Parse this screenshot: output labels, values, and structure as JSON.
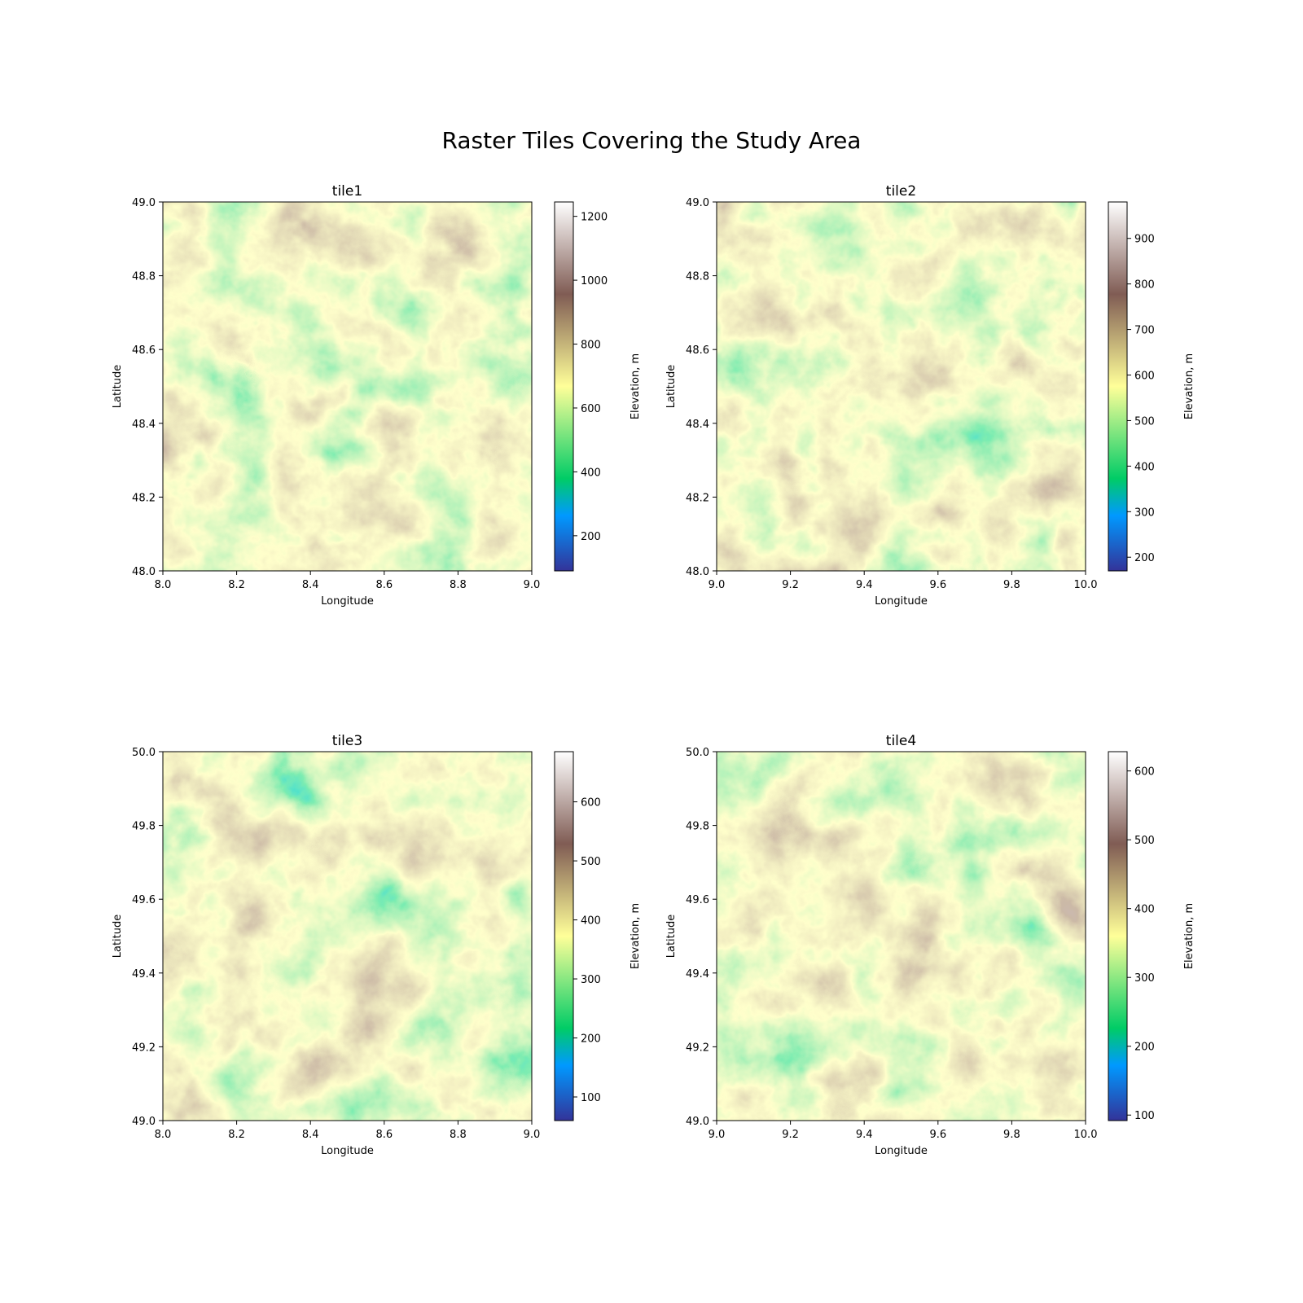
{
  "figure": {
    "title": "Raster Tiles Covering the Study Area"
  },
  "chart_data": [
    {
      "type": "heatmap",
      "title": "tile1",
      "xlabel": "Longitude",
      "ylabel": "Latitude",
      "xlim": [
        8.0,
        9.0
      ],
      "ylim": [
        48.0,
        49.0
      ],
      "xticks": [
        8.0,
        8.2,
        8.4,
        8.6,
        8.8,
        9.0
      ],
      "xtick_labels": [
        "8.0",
        "8.2",
        "8.4",
        "8.6",
        "8.8",
        "9.0"
      ],
      "yticks": [
        48.0,
        48.2,
        48.4,
        48.6,
        48.8,
        49.0
      ],
      "ytick_labels": [
        "48.0",
        "48.2",
        "48.4",
        "48.6",
        "48.8",
        "49.0"
      ],
      "colorbar": {
        "label": "Elevation, m",
        "range": [
          90,
          1245
        ],
        "ticks": [
          200,
          400,
          600,
          800,
          1000,
          1200
        ],
        "tick_labels": [
          "200",
          "400",
          "600",
          "800",
          "1000",
          "1200"
        ]
      },
      "colormap": "terrain",
      "grid": false
    },
    {
      "type": "heatmap",
      "title": "tile2",
      "xlabel": "Longitude",
      "ylabel": "Latitude",
      "xlim": [
        9.0,
        10.0
      ],
      "ylim": [
        48.0,
        49.0
      ],
      "xticks": [
        9.0,
        9.2,
        9.4,
        9.6,
        9.8,
        10.0
      ],
      "xtick_labels": [
        "9.0",
        "9.2",
        "9.4",
        "9.6",
        "9.8",
        "10.0"
      ],
      "yticks": [
        48.0,
        48.2,
        48.4,
        48.6,
        48.8,
        49.0
      ],
      "ytick_labels": [
        "48.0",
        "48.2",
        "48.4",
        "48.6",
        "48.8",
        "49.0"
      ],
      "colorbar": {
        "label": "Elevation, m",
        "range": [
          170,
          980
        ],
        "ticks": [
          200,
          300,
          400,
          500,
          600,
          700,
          800,
          900
        ],
        "tick_labels": [
          "200",
          "300",
          "400",
          "500",
          "600",
          "700",
          "800",
          "900"
        ]
      },
      "colormap": "terrain",
      "grid": false
    },
    {
      "type": "heatmap",
      "title": "tile3",
      "xlabel": "Longitude",
      "ylabel": "Latitude",
      "xlim": [
        8.0,
        9.0
      ],
      "ylim": [
        49.0,
        50.0
      ],
      "xticks": [
        8.0,
        8.2,
        8.4,
        8.6,
        8.8,
        9.0
      ],
      "xtick_labels": [
        "8.0",
        "8.2",
        "8.4",
        "8.6",
        "8.8",
        "9.0"
      ],
      "yticks": [
        49.0,
        49.2,
        49.4,
        49.6,
        49.8,
        50.0
      ],
      "ytick_labels": [
        "49.0",
        "49.2",
        "49.4",
        "49.6",
        "49.8",
        "50.0"
      ],
      "colorbar": {
        "label": "Elevation, m",
        "range": [
          60,
          685
        ],
        "ticks": [
          100,
          200,
          300,
          400,
          500,
          600
        ],
        "tick_labels": [
          "100",
          "200",
          "300",
          "400",
          "500",
          "600"
        ]
      },
      "colormap": "terrain",
      "grid": false
    },
    {
      "type": "heatmap",
      "title": "tile4",
      "xlabel": "Longitude",
      "ylabel": "Latitude",
      "xlim": [
        9.0,
        10.0
      ],
      "ylim": [
        49.0,
        50.0
      ],
      "xticks": [
        9.0,
        9.2,
        9.4,
        9.6,
        9.8,
        10.0
      ],
      "xtick_labels": [
        "9.0",
        "9.2",
        "9.4",
        "9.6",
        "9.8",
        "10.0"
      ],
      "yticks": [
        49.0,
        49.2,
        49.4,
        49.6,
        49.8,
        50.0
      ],
      "ytick_labels": [
        "49.0",
        "49.2",
        "49.4",
        "49.6",
        "49.8",
        "50.0"
      ],
      "colorbar": {
        "label": "Elevation, m",
        "range": [
          92,
          628
        ],
        "ticks": [
          100,
          200,
          300,
          400,
          500,
          600
        ],
        "tick_labels": [
          "100",
          "200",
          "300",
          "400",
          "500",
          "600"
        ]
      },
      "colormap": "terrain",
      "grid": false
    }
  ]
}
